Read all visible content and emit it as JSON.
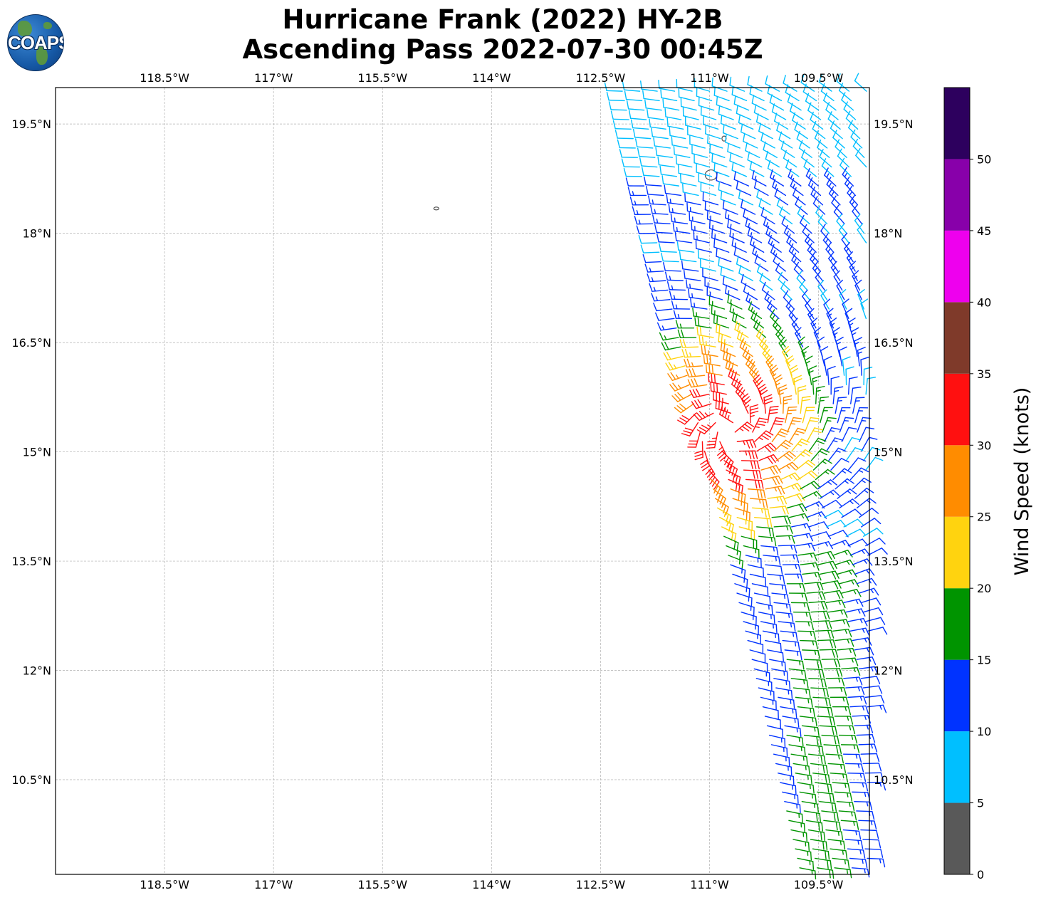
{
  "title_line1": "Hurricane Frank (2022) HY-2B",
  "title_line2": "Ascending Pass 2022-07-30 00:45Z",
  "logo": {
    "text": "COAPS",
    "icon": "globe-icon"
  },
  "map": {
    "lon_range": [
      -120.0,
      -108.8
    ],
    "lat_range": [
      9.2,
      20.0
    ],
    "lon_ticks": [
      {
        "value": -118.5,
        "label": "118.5°W"
      },
      {
        "value": -117.0,
        "label": "117°W"
      },
      {
        "value": -115.5,
        "label": "115.5°W"
      },
      {
        "value": -114.0,
        "label": "114°W"
      },
      {
        "value": -112.5,
        "label": "112.5°W"
      },
      {
        "value": -111.0,
        "label": "111°W"
      },
      {
        "value": -109.5,
        "label": "109.5°W"
      }
    ],
    "lat_ticks": [
      {
        "value": 19.5,
        "label": "19.5°N"
      },
      {
        "value": 18.0,
        "label": "18°N"
      },
      {
        "value": 16.5,
        "label": "16.5°N"
      },
      {
        "value": 15.0,
        "label": "15°N"
      },
      {
        "value": 13.5,
        "label": "13.5°N"
      },
      {
        "value": 12.0,
        "label": "12°N"
      },
      {
        "value": 10.5,
        "label": "10.5°N"
      }
    ],
    "grid": true,
    "coast_color": "#444444",
    "islands": [
      {
        "lon": -114.76,
        "lat": 18.34,
        "rx": 0.035,
        "ry": 0.015
      },
      {
        "lon": -110.98,
        "lat": 18.8,
        "rx": 0.08,
        "ry": 0.07
      },
      {
        "lon": -110.8,
        "lat": 19.3,
        "rx": 0.025,
        "ry": 0.035
      }
    ]
  },
  "colorbar": {
    "label": "Wind Speed (knots)",
    "levels": [
      0,
      5,
      10,
      15,
      20,
      25,
      30,
      35,
      40,
      45,
      50,
      55
    ],
    "tick_labels": [
      "0",
      "5",
      "10",
      "15",
      "20",
      "25",
      "30",
      "35",
      "40",
      "45",
      "50"
    ],
    "colors": [
      "#595959",
      "#00bfff",
      "#0033ff",
      "#009400",
      "#ffd30f",
      "#ff8c00",
      "#ff1010",
      "#7f3a2a",
      "#ee00ee",
      "#8800aa",
      "#2d005e"
    ]
  },
  "swath": {
    "center": {
      "lon": -110.7,
      "lat": 15.3
    },
    "max_speed": 33,
    "rows": [
      {
        "lat": 19.95,
        "lon_start": -112.2
      },
      {
        "lat": 9.25,
        "lon_start": -109.75
      }
    ],
    "row_spacing_deg": 0.13,
    "col_spacing_deg": 0.24
  }
}
